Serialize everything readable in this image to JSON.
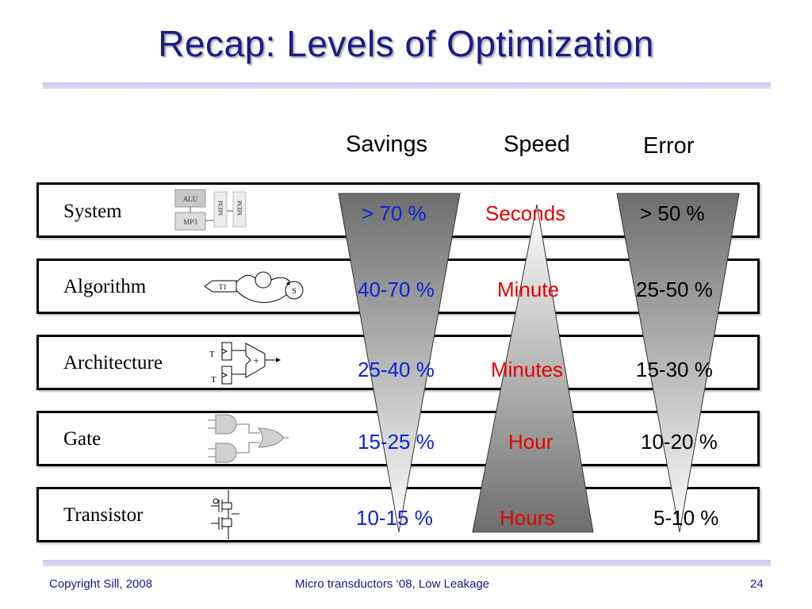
{
  "slide": {
    "title": "Recap: Levels of Optimization",
    "columns": {
      "savings": "Savings",
      "speed": "Speed",
      "error": "Error"
    },
    "rows": [
      {
        "label": "System",
        "savings": "> 70 %",
        "speed": "Seconds",
        "error": "> 50 %"
      },
      {
        "label": "Algorithm",
        "savings": "40-70 %",
        "speed": "Minute",
        "error": "25-50 %"
      },
      {
        "label": "Architecture",
        "savings": "25-40 %",
        "speed": "Minutes",
        "error": "15-30 %"
      },
      {
        "label": "Gate",
        "savings": "15-25 %",
        "speed": "Hour",
        "error": "10-20 %"
      },
      {
        "label": "Transistor",
        "savings": "10-15 %",
        "speed": "Hours",
        "error": "5-10 %"
      }
    ],
    "icons": {
      "system": {
        "alu": "ALU",
        "mp3": "MP3",
        "mem1": "MEM",
        "mem2": "MEM"
      },
      "algorithm": {
        "t1": "T1",
        "s": "S"
      },
      "architecture": {
        "t_top": "T",
        "t_bottom": "T",
        "plus": "+"
      }
    }
  },
  "footer": {
    "copyright": "Copyright Sill, 2008",
    "conference": "Micro transductors ‘08, Low Leakage",
    "page": "24"
  },
  "colors": {
    "title": "#1a1a8c",
    "savings_text": "#0a24d8",
    "speed_text": "#e60000",
    "error_text": "#000000",
    "rule": "#c8c8ee"
  }
}
